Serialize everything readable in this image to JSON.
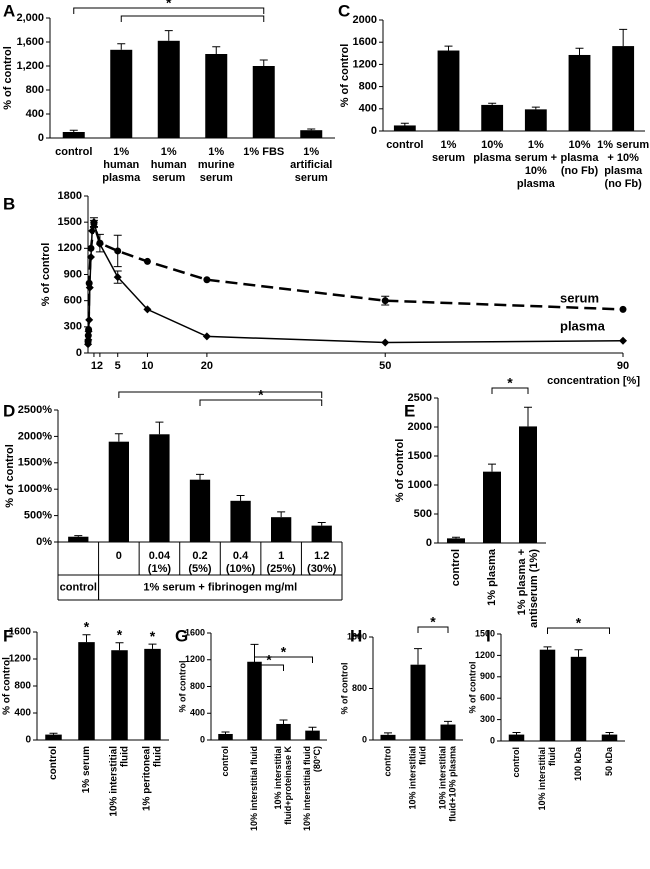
{
  "chart_data": [
    {
      "panel": "A",
      "type": "bar",
      "ylabel": "% of control",
      "color": "#000000",
      "categories": [
        [
          "control"
        ],
        [
          "1%",
          "human",
          "plasma"
        ],
        [
          "1%",
          "human",
          "serum"
        ],
        [
          "1%",
          "murine",
          "serum"
        ],
        [
          "1% FBS"
        ],
        [
          "1%",
          "artificial",
          "serum"
        ]
      ],
      "values": [
        100,
        1470,
        1620,
        1400,
        1200,
        130
      ],
      "errors": [
        30,
        100,
        170,
        120,
        100,
        20
      ],
      "ylim": [
        0,
        2000
      ],
      "yticks": [
        0,
        400,
        800,
        {
          "value": 1200,
          "label": "1,200"
        },
        {
          "value": 1600,
          "label": "1,600"
        },
        {
          "value": 2000,
          "label": "2,000"
        }
      ],
      "brackets": [
        {
          "from": 0,
          "to": 4,
          "label": "*"
        },
        {
          "from": 1,
          "to": 4
        }
      ]
    },
    {
      "panel": "B",
      "type": "line",
      "ylabel": "% of control",
      "xlabel": "concentration [%]",
      "xlim": [
        0,
        90
      ],
      "xticks": [
        1,
        2,
        5,
        10,
        20,
        50,
        90
      ],
      "ylim": [
        0,
        1800
      ],
      "yticks": [
        0,
        300,
        600,
        900,
        1200,
        1500,
        1800
      ],
      "series": [
        {
          "name": "serum",
          "color": "#000000",
          "dashed": true,
          "marker": "circle",
          "x": [
            0.01,
            0.05,
            0.1,
            0.2,
            0.5,
            1,
            2,
            5,
            10,
            20,
            50,
            90
          ],
          "values": [
            130,
            200,
            270,
            800,
            1200,
            1480,
            1260,
            1170,
            1050,
            840,
            600,
            500
          ],
          "errors": [
            null,
            null,
            null,
            null,
            null,
            40,
            100,
            180,
            null,
            null,
            50,
            null
          ]
        },
        {
          "name": "plasma",
          "color": "#000000",
          "dashed": false,
          "marker": "diamond",
          "x": [
            0.01,
            0.05,
            0.1,
            0.2,
            0.3,
            0.5,
            0.7,
            1,
            2,
            5,
            10,
            20,
            50,
            90
          ],
          "values": [
            100,
            150,
            250,
            380,
            750,
            1100,
            1400,
            1500,
            1250,
            870,
            500,
            190,
            120,
            140
          ],
          "errors": [
            null,
            null,
            null,
            null,
            null,
            null,
            null,
            50,
            null,
            70,
            null,
            null,
            null,
            null
          ]
        }
      ]
    },
    {
      "panel": "C",
      "type": "bar",
      "ylabel": "% of control",
      "color": "#000000",
      "categories": [
        [
          "control"
        ],
        [
          "1%",
          "serum"
        ],
        [
          "10%",
          "plasma"
        ],
        [
          "1%",
          "serum +",
          "10%",
          "plasma"
        ],
        [
          "10%",
          "plasma",
          "(no Fb)"
        ],
        [
          "1% serum",
          "+ 10%",
          "plasma",
          "(no Fb)"
        ]
      ],
      "values": [
        100,
        1450,
        470,
        390,
        1370,
        1530
      ],
      "errors": [
        40,
        80,
        30,
        40,
        120,
        300
      ],
      "ylim": [
        0,
        2000
      ],
      "yticks": [
        0,
        400,
        800,
        1200,
        1600,
        2000
      ]
    },
    {
      "panel": "D",
      "type": "bar",
      "ylabel": "% of control",
      "color": "#000000",
      "categories": [
        null,
        [
          "0"
        ],
        [
          "0.04",
          "(1%)"
        ],
        [
          "0.2",
          "(5%)"
        ],
        [
          "0.4",
          "(10%)"
        ],
        [
          "1",
          "(25%)"
        ],
        [
          "1.2",
          "(30%)"
        ]
      ],
      "x_groups": [
        {
          "label": "control",
          "from": 0,
          "to": 0
        },
        {
          "label": "1% serum + fibrinogen mg/ml",
          "from": 1,
          "to": 6
        }
      ],
      "values": [
        100,
        1900,
        2040,
        1180,
        780,
        470,
        310
      ],
      "errors": [
        20,
        150,
        230,
        100,
        100,
        100,
        60
      ],
      "ylim": [
        0,
        2500
      ],
      "yticks": [
        {
          "value": 0,
          "label": "0%"
        },
        {
          "value": 500,
          "label": "500%"
        },
        {
          "value": 1000,
          "label": "1000%"
        },
        {
          "value": 1500,
          "label": "1500%"
        },
        {
          "value": 2000,
          "label": "2000%"
        },
        {
          "value": 2500,
          "label": "2500%"
        }
      ],
      "brackets": [
        {
          "from": 1,
          "to": 6
        },
        {
          "from": 3,
          "to": 6,
          "label": "*"
        }
      ]
    },
    {
      "panel": "E",
      "type": "bar",
      "ylabel": "% of control",
      "color": "#000000",
      "rotate_labels": true,
      "categories": [
        [
          "control"
        ],
        [
          "1% plasma"
        ],
        [
          "1% plasma +",
          "antiserum (1%)"
        ]
      ],
      "values": [
        80,
        1230,
        2010
      ],
      "errors": [
        20,
        130,
        330
      ],
      "ylim": [
        0,
        2500
      ],
      "yticks": [
        0,
        500,
        1000,
        1500,
        2000,
        2500
      ],
      "brackets": [
        {
          "from": 1,
          "to": 2,
          "label": "*"
        }
      ]
    },
    {
      "panel": "F",
      "type": "bar",
      "ylabel": "% of control",
      "color": "#000000",
      "rotate_labels": true,
      "categories": [
        [
          "control"
        ],
        [
          "1% serum"
        ],
        [
          "10% interstitial",
          "fluid"
        ],
        [
          "1% peritoneal",
          "fluid"
        ]
      ],
      "values": [
        80,
        1450,
        1330,
        1350
      ],
      "errors": [
        20,
        110,
        110,
        70
      ],
      "annotations": [
        null,
        "*",
        "*",
        "*"
      ],
      "ylim": [
        0,
        1600
      ],
      "yticks": [
        0,
        400,
        800,
        1200,
        1600
      ]
    },
    {
      "panel": "G",
      "type": "bar",
      "ylabel": "% of control",
      "color": "#000000",
      "rotate_labels": true,
      "categories": [
        [
          "control"
        ],
        [
          "10% interstitial fluid"
        ],
        [
          "10% interstitial",
          "fluid+proteinase K"
        ],
        [
          "10% interstitial fluid",
          "(80°C)"
        ]
      ],
      "values": [
        90,
        1170,
        240,
        140
      ],
      "errors": [
        30,
        260,
        60,
        50
      ],
      "ylim": [
        0,
        1600
      ],
      "yticks": [
        0,
        400,
        800,
        1200,
        1600
      ],
      "brackets": [
        {
          "from": 1,
          "to": 3,
          "label": "*"
        },
        {
          "from": 1,
          "to": 2,
          "label": "*"
        }
      ]
    },
    {
      "panel": "H",
      "type": "bar",
      "ylabel": "% of control",
      "color": "#000000",
      "rotate_labels": true,
      "categories": [
        [
          "control"
        ],
        [
          "10% interstitial",
          "fluid"
        ],
        [
          "10% interstitial",
          "fluid+10% plasma"
        ]
      ],
      "values": [
        80,
        1170,
        240
      ],
      "errors": [
        30,
        250,
        50
      ],
      "ylim": [
        0,
        1600
      ],
      "yticks": [
        0,
        800,
        1600
      ],
      "brackets": [
        {
          "from": 1,
          "to": 2,
          "label": "*"
        }
      ]
    },
    {
      "panel": "I",
      "type": "bar",
      "ylabel": "% of control",
      "color": "#000000",
      "rotate_labels": true,
      "categories": [
        [
          "control"
        ],
        [
          "10% interstitial",
          "fluid"
        ],
        [
          "100 kDa"
        ],
        [
          "50 kDa"
        ]
      ],
      "values": [
        90,
        1280,
        1180,
        90
      ],
      "errors": [
        30,
        40,
        100,
        30
      ],
      "ylim": [
        0,
        1500
      ],
      "yticks": [
        0,
        300,
        600,
        900,
        1200,
        1500
      ],
      "brackets": [
        {
          "from": 1,
          "to": 3,
          "label": "*"
        }
      ]
    }
  ]
}
